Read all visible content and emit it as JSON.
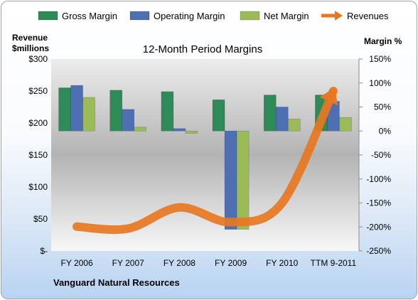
{
  "chart_data": {
    "type": "bar",
    "title": "12-Month Period Margins",
    "company": "Vanguard Natural Resources",
    "categories": [
      "FY 2006",
      "FY 2007",
      "FY 2008",
      "FY 2009",
      "FY 2010",
      "TTM 9-2011"
    ],
    "series": [
      {
        "name": "Gross Margin",
        "axis": "right",
        "type": "bar",
        "color": "#2e8b57",
        "values": [
          90,
          85,
          82,
          65,
          75,
          75
        ]
      },
      {
        "name": "Operating Margin",
        "axis": "right",
        "type": "bar",
        "color": "#4f6fb3",
        "values": [
          95,
          45,
          5,
          -205,
          50,
          62
        ]
      },
      {
        "name": "Net Margin",
        "axis": "right",
        "type": "bar",
        "color": "#9bbb59",
        "values": [
          70,
          8,
          -5,
          -205,
          25,
          28
        ]
      },
      {
        "name": "Revenues",
        "axis": "left",
        "type": "line",
        "color": "#e87722",
        "values": [
          38,
          35,
          68,
          45,
          75,
          250
        ]
      }
    ],
    "left_axis": {
      "label_line1": "Revenue",
      "label_line2": "$millions",
      "ylim": [
        0,
        300
      ],
      "ticks": [
        "$-",
        "$50",
        "$100",
        "$150",
        "$200",
        "$250",
        "$300"
      ]
    },
    "right_axis": {
      "label": "Margin %",
      "ylim": [
        -250,
        150
      ],
      "ticks": [
        "-250%",
        "-200%",
        "-150%",
        "-100%",
        "-50%",
        "0%",
        "50%",
        "100%",
        "150%"
      ]
    },
    "legend_position": "top"
  }
}
